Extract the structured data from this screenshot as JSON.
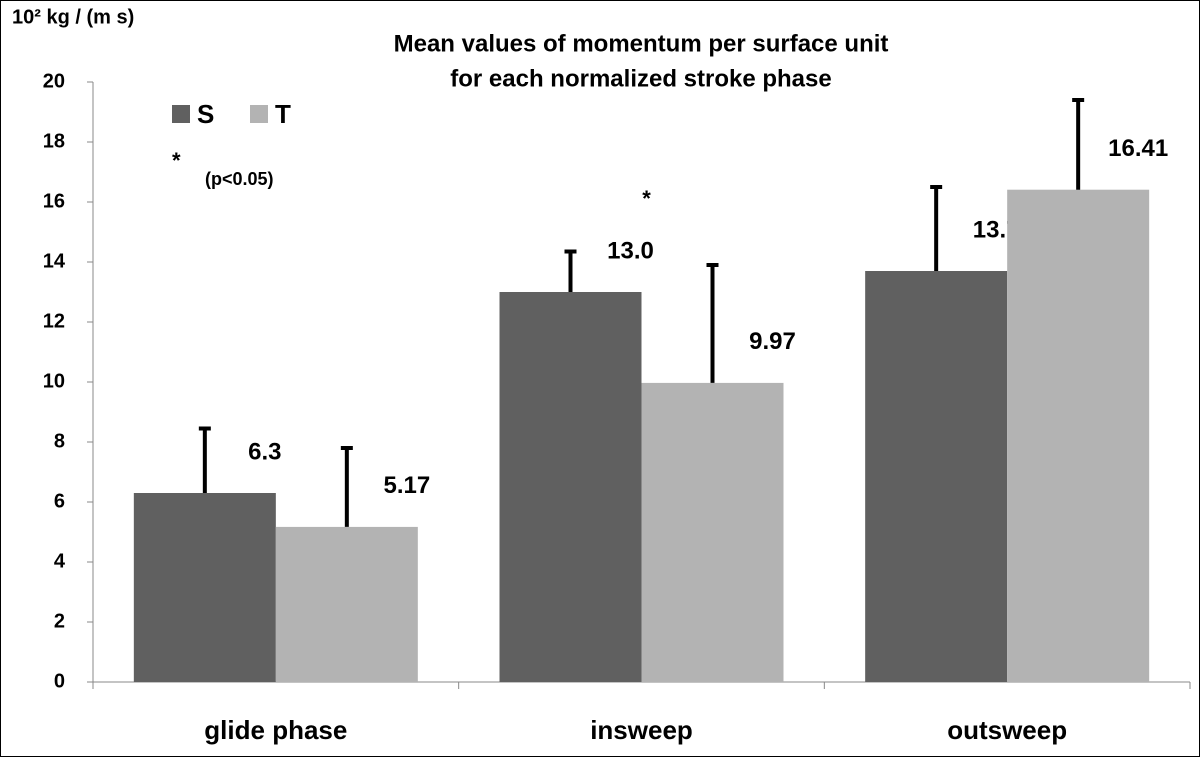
{
  "chart_data": {
    "type": "bar",
    "title": [
      "Mean values of momentum per surface unit",
      "for each normalized stroke phase"
    ],
    "y_label": "10² kg / (m s)",
    "categories": [
      "glide phase",
      "insweep",
      "outsweep"
    ],
    "series": [
      {
        "name": "S",
        "color": "#606060",
        "values": [
          6.3,
          13.0,
          13.7
        ],
        "value_labels": [
          "6.3",
          "13.0",
          "13.7"
        ],
        "errors": [
          2.15,
          1.35,
          2.8
        ]
      },
      {
        "name": "T",
        "color": "#b3b3b3",
        "values": [
          5.17,
          9.97,
          16.41
        ],
        "value_labels": [
          "5.17",
          "9.97",
          "16.41"
        ],
        "errors": [
          2.63,
          3.93,
          2.99
        ]
      }
    ],
    "annotations": [
      "*",
      "(p<0.05)",
      "*"
    ],
    "ylim": [
      0,
      20
    ],
    "yticks": [
      0,
      2,
      4,
      6,
      8,
      10,
      12,
      14,
      16,
      18,
      20
    ],
    "grid": false,
    "legend": "top-left"
  }
}
